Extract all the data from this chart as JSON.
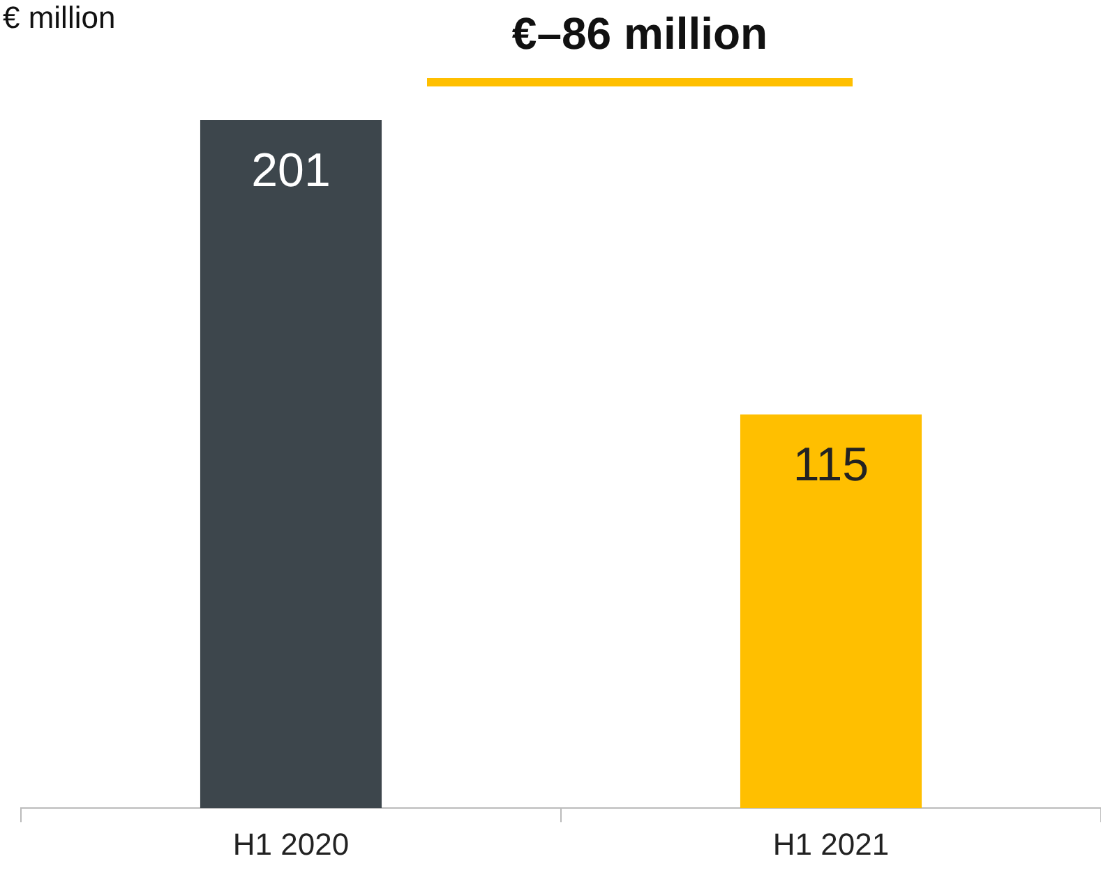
{
  "chart_data": {
    "type": "bar",
    "ylabel": "€ million",
    "annotations": [
      "€–86 million"
    ],
    "categories": [
      "H1 2020",
      "H1 2021"
    ],
    "values": [
      201,
      115
    ],
    "colors": [
      "#3d464c",
      "#ffbf00"
    ],
    "data_labels": true,
    "grid": false,
    "legend": false
  }
}
